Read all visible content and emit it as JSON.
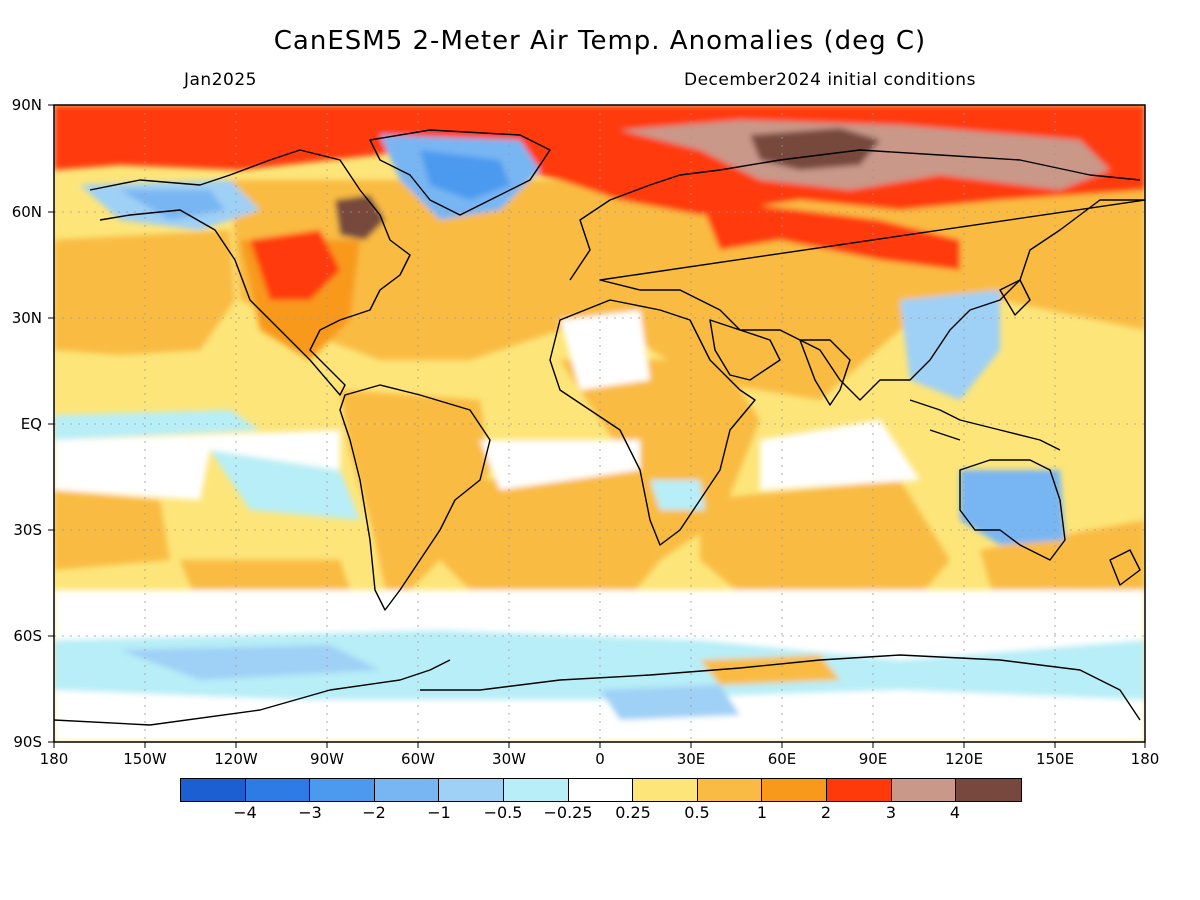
{
  "title": "CanESM5 2-Meter Air Temp. Anomalies (deg C)",
  "valid_month": "Jan2025",
  "initial_conditions": "December2024 initial conditions",
  "lat_labels": [
    "90N",
    "60N",
    "30N",
    "EQ",
    "30S",
    "60S",
    "90S"
  ],
  "lon_labels": [
    "180",
    "150W",
    "120W",
    "90W",
    "60W",
    "30W",
    "0",
    "30E",
    "60E",
    "90E",
    "120E",
    "150E",
    "180"
  ],
  "colorbar": {
    "colors": [
      "#1c5fd2",
      "#2f7be6",
      "#4b9af0",
      "#78b6f3",
      "#9fd0f6",
      "#b8eef7",
      "#ffffff",
      "#fde57a",
      "#f9bb43",
      "#f8991b",
      "#ff3a0a",
      "#c99889",
      "#77493e"
    ],
    "labels": [
      "−4",
      "−3",
      "−2",
      "−1",
      "−0.5",
      "−0.25",
      "0.25",
      "0.5",
      "1",
      "2",
      "3",
      "4"
    ]
  },
  "map_regions": [
    {
      "name": "arctic-warm",
      "level": "3",
      "color": "#ff3a0a"
    },
    {
      "name": "siberia-extreme",
      "level": "4",
      "color": "#77493e"
    },
    {
      "name": "hudson-bay-extreme",
      "level": "4",
      "color": "#77493e"
    },
    {
      "name": "greenland-cold",
      "level": "-2",
      "color": "#4b9af0"
    },
    {
      "name": "alaska-cold",
      "level": "-1",
      "color": "#78b6f3"
    },
    {
      "name": "australia-cold",
      "level": "-1",
      "color": "#78b6f3"
    },
    {
      "name": "southern-ocean-cold",
      "level": "-0.5",
      "color": "#9fd0f6"
    }
  ]
}
